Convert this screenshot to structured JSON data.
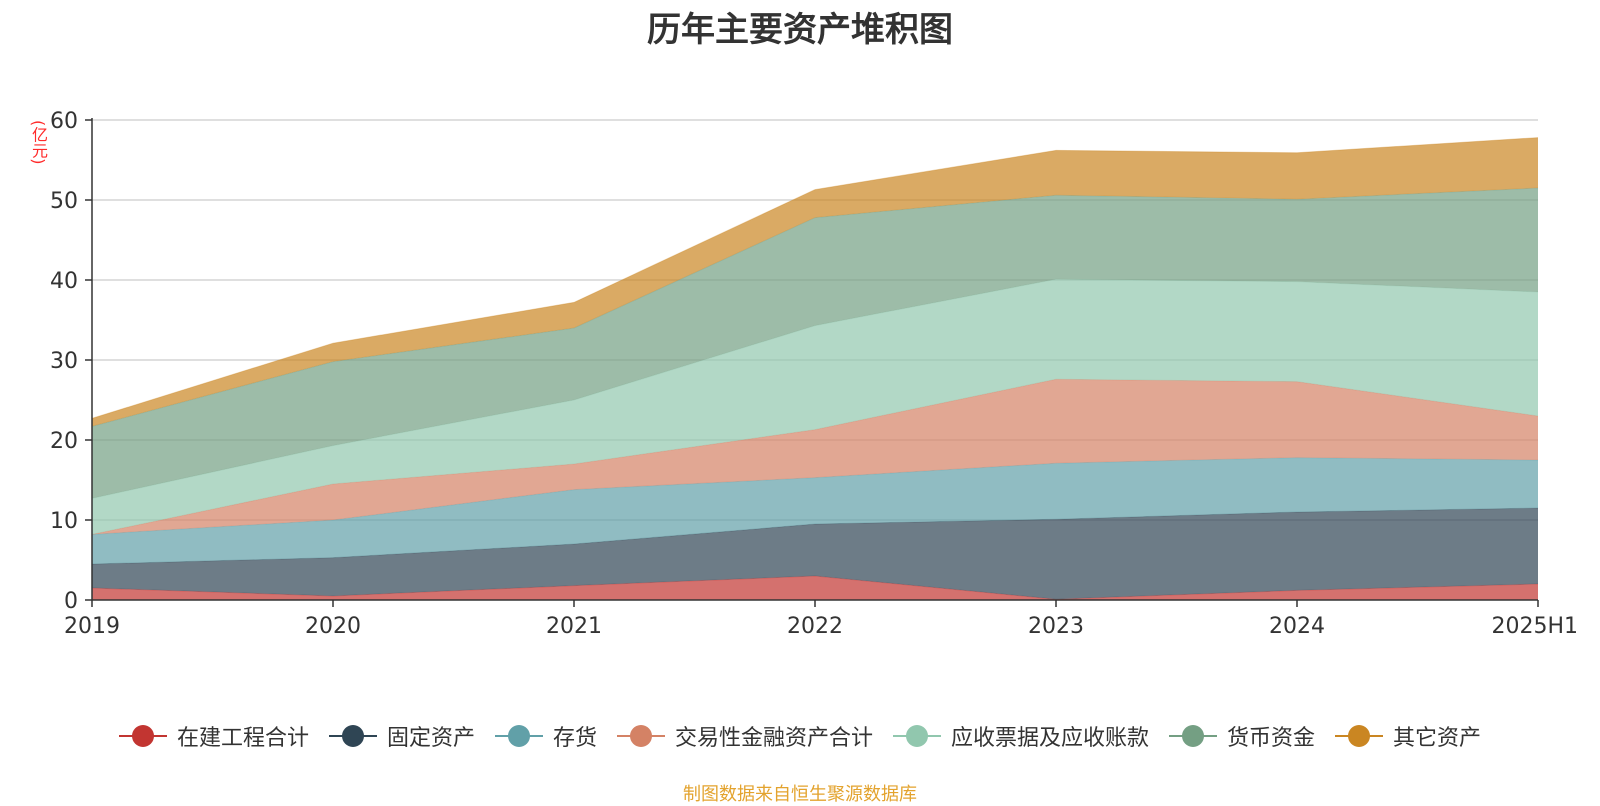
{
  "title": "历年主要资产堆积图",
  "unit_label": "(亿元)",
  "source_note": "制图数据来自恒生聚源数据库",
  "chart_data": {
    "type": "area",
    "stacked": true,
    "title": "历年主要资产堆积图",
    "ylabel": "(亿元)",
    "x": [
      "2019",
      "2020",
      "2021",
      "2022",
      "2023",
      "2024",
      "2025H1"
    ],
    "ylim": [
      0,
      60
    ],
    "yticks": [
      0,
      10,
      20,
      30,
      40,
      50,
      60
    ],
    "grid": true,
    "legend_position": "bottom",
    "series": [
      {
        "name": "在建工程合计",
        "color": "#c23531",
        "values": [
          1.5,
          0.5,
          1.8,
          3.0,
          0.1,
          1.2,
          2.0
        ]
      },
      {
        "name": "固定资产",
        "color": "#2f4554",
        "values": [
          3.0,
          4.8,
          5.2,
          6.5,
          10.0,
          9.8,
          9.5
        ]
      },
      {
        "name": "存货",
        "color": "#61a0a8",
        "values": [
          3.7,
          4.7,
          6.8,
          5.8,
          7.0,
          6.8,
          6.0
        ]
      },
      {
        "name": "交易性金融资产合计",
        "color": "#d48265",
        "values": [
          0.0,
          4.5,
          3.2,
          6.0,
          10.5,
          9.5,
          5.5
        ]
      },
      {
        "name": "应收票据及应收账款",
        "color": "#91c7ae",
        "values": [
          4.5,
          4.8,
          8.0,
          13.0,
          12.5,
          12.5,
          15.5
        ]
      },
      {
        "name": "货币资金",
        "color": "#749f83",
        "values": [
          9.0,
          10.5,
          9.0,
          13.5,
          10.5,
          10.3,
          13.0
        ]
      },
      {
        "name": "其它资产",
        "color": "#ca8622",
        "values": [
          1.0,
          2.3,
          3.2,
          3.5,
          5.6,
          5.8,
          6.3
        ]
      }
    ]
  }
}
